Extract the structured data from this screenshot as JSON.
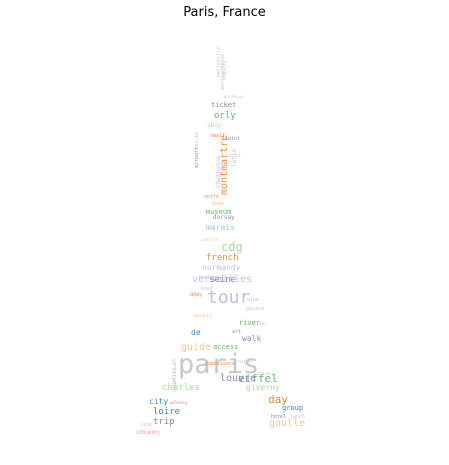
{
  "title": "Paris, France",
  "palette": {
    "blue": "#3a83bf",
    "lightblue": "#9ec8e6",
    "orange": "#f08a3e",
    "peach": "#f5c79a",
    "green": "#62b563",
    "lightgreen": "#a9d9a0",
    "purple": "#8d86c2",
    "lavender": "#c4c0df",
    "gray": "#8a8a8a",
    "lightgray": "#c8c8c8",
    "pink": "#f2b6c6",
    "red": "#e9787b"
  },
  "words": [
    {
      "text": "paris",
      "color": "lightgray"
    },
    {
      "text": "tour",
      "color": "lavender"
    },
    {
      "text": "eiffel",
      "color": "green"
    },
    {
      "text": "day",
      "color": "orange"
    },
    {
      "text": "montmartre",
      "color": "orange"
    },
    {
      "text": "versailles",
      "color": "lavender"
    },
    {
      "text": "louvre",
      "color": "purple"
    },
    {
      "text": "cdg",
      "color": "lightgreen"
    },
    {
      "text": "guide",
      "color": "peach"
    },
    {
      "text": "seine",
      "color": "purple"
    },
    {
      "text": "orly",
      "color": "green"
    },
    {
      "text": "french",
      "color": "orange"
    },
    {
      "text": "normandy",
      "color": "lavender"
    },
    {
      "text": "marais",
      "color": "lightblue"
    },
    {
      "text": "charles",
      "color": "lightgreen"
    },
    {
      "text": "giverny",
      "color": "lightgreen"
    },
    {
      "text": "walk",
      "color": "purple"
    },
    {
      "text": "city",
      "color": "blue"
    },
    {
      "text": "loire",
      "color": "blue"
    },
    {
      "text": "trip",
      "color": "gray"
    },
    {
      "text": "gaulle",
      "color": "peach"
    },
    {
      "text": "museum",
      "color": "green"
    },
    {
      "text": "de",
      "color": "blue"
    },
    {
      "text": "access",
      "color": "green"
    },
    {
      "text": "river",
      "color": "green"
    },
    {
      "text": "group",
      "color": "blue"
    },
    {
      "text": "ticket",
      "color": "gray"
    },
    {
      "text": "champagne",
      "color": "lavender"
    },
    {
      "text": "latin",
      "color": "lavender"
    },
    {
      "text": "dorsay",
      "color": "purple"
    },
    {
      "text": "skip",
      "color": "lightgreen"
    },
    {
      "text": "notre",
      "color": "orange"
    },
    {
      "text": "hotel",
      "color": "gray"
    },
    {
      "text": "lunch",
      "color": "lavender"
    },
    {
      "text": "art",
      "color": "purple"
    },
    {
      "text": "experience",
      "color": "orange"
    },
    {
      "text": "dday",
      "color": "orange"
    },
    {
      "text": "quartier",
      "color": "lightgray"
    },
    {
      "text": "castle",
      "color": "peach"
    },
    {
      "text": "moulin",
      "color": "peach"
    },
    {
      "text": "bike",
      "color": "lavender"
    },
    {
      "text": "tasting",
      "color": "lavender"
    },
    {
      "text": "boat",
      "color": "lightgray"
    },
    {
      "text": "small",
      "color": "orange"
    },
    {
      "text": "disney",
      "color": "pink"
    },
    {
      "text": "wine",
      "color": "lavender"
    },
    {
      "text": "palace",
      "color": "lavender"
    },
    {
      "text": "dame",
      "color": "peach"
    },
    {
      "text": "sainte",
      "color": "lightgray"
    },
    {
      "text": "line",
      "color": "pink"
    },
    {
      "text": "private",
      "color": "pink"
    },
    {
      "text": "night",
      "color": "lightgray"
    },
    {
      "text": "cruise",
      "color": "lightgray"
    },
    {
      "text": "parisian",
      "color": "lightgray"
    },
    {
      "text": "belleville",
      "color": "lightgray"
    },
    {
      "text": "montparnasse",
      "color": "lavender"
    },
    {
      "text": "chapelle",
      "color": "lightgray"
    },
    {
      "text": "walking",
      "color": "red"
    },
    {
      "text": "saint",
      "color": "purple"
    },
    {
      "text": "visit",
      "color": "lightgray"
    },
    {
      "text": "bordeaux",
      "color": "lightgray"
    },
    {
      "text": "airport",
      "color": "purple"
    }
  ]
}
